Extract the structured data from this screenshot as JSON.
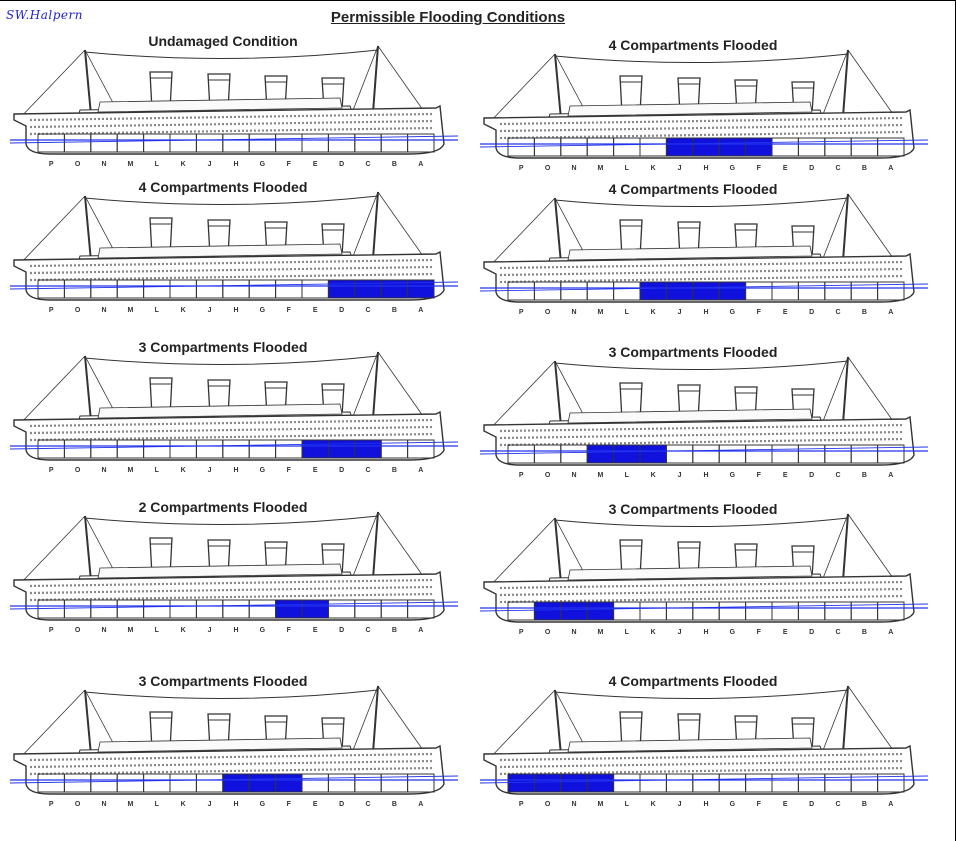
{
  "signature": "SW.Halpern",
  "title": "Permissible Flooding Conditions",
  "colors": {
    "flood": "#1111dd",
    "waterline": "#2233ee",
    "line": "#333333"
  },
  "compartment_letters": [
    "P",
    "O",
    "N",
    "M",
    "L",
    "K",
    "J",
    "H",
    "G",
    "F",
    "E",
    "D",
    "C",
    "B",
    "A"
  ],
  "panels": [
    {
      "title": "Undamaged Condition",
      "flooded": []
    },
    {
      "title": "4 Compartments Flooded",
      "flooded": [
        "J",
        "H",
        "G",
        "F"
      ]
    },
    {
      "title": "4 Compartments Flooded",
      "flooded": [
        "D",
        "C",
        "B",
        "A"
      ]
    },
    {
      "title": "4 Compartments Flooded",
      "flooded": [
        "K",
        "J",
        "H",
        "G"
      ]
    },
    {
      "title": "3 Compartments Flooded",
      "flooded": [
        "E",
        "D",
        "C"
      ]
    },
    {
      "title": "3 Compartments Flooded",
      "flooded": [
        "M",
        "L",
        "K"
      ]
    },
    {
      "title": "2 Compartments Flooded",
      "flooded": [
        "F",
        "E"
      ]
    },
    {
      "title": "3 Compartments Flooded",
      "flooded": [
        "O",
        "N",
        "M"
      ]
    },
    {
      "title": "3 Compartments Flooded",
      "flooded": [
        "H",
        "G",
        "F"
      ]
    },
    {
      "title": "4 Compartments Flooded",
      "flooded": [
        "P",
        "O",
        "N",
        "M"
      ]
    }
  ]
}
